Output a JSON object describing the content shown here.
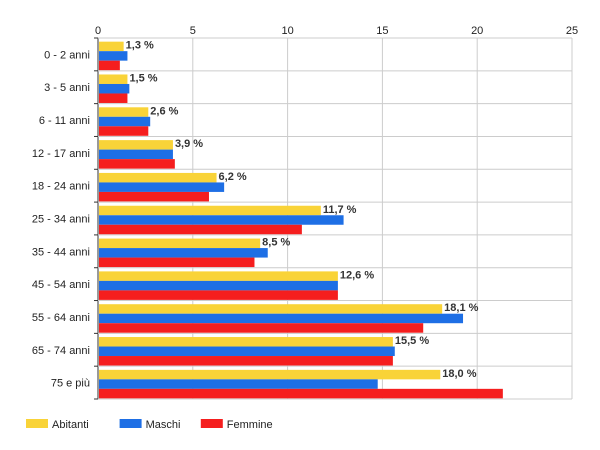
{
  "chart_data": {
    "type": "bar",
    "orientation": "horizontal",
    "categories": [
      "0 - 2 anni",
      "3 - 5 anni",
      "6 - 11 anni",
      "12 - 17 anni",
      "18 - 24 anni",
      "25 - 34 anni",
      "35 - 44 anni",
      "45 - 54 anni",
      "55 - 64 anni",
      "65 - 74 anni",
      "75 e più"
    ],
    "series": [
      {
        "name": "Abitanti",
        "color": "#f9d338",
        "values": [
          1.3,
          1.5,
          2.6,
          3.9,
          6.2,
          11.7,
          8.5,
          12.6,
          18.1,
          15.5,
          18.0
        ]
      },
      {
        "name": "Maschi",
        "color": "#1e6fe5",
        "values": [
          1.5,
          1.6,
          2.7,
          3.9,
          6.6,
          12.9,
          8.9,
          12.6,
          19.2,
          15.6,
          14.7
        ]
      },
      {
        "name": "Femmine",
        "color": "#f51e1e",
        "values": [
          1.1,
          1.5,
          2.6,
          4.0,
          5.8,
          10.7,
          8.2,
          12.6,
          17.1,
          15.5,
          21.3
        ]
      }
    ],
    "data_labels": [
      "1,3 %",
      "1,5 %",
      "2,6 %",
      "3,9 %",
      "6,2 %",
      "11,7 %",
      "8,5 %",
      "12,6 %",
      "18,1 %",
      "15,5 %",
      "18,0 %"
    ],
    "xlim": [
      0,
      25
    ],
    "x_ticks": [
      0,
      5,
      10,
      15,
      20,
      25
    ],
    "x_axis_position": "top",
    "grid": true,
    "legend_position": "bottom-left",
    "title": "",
    "xlabel": "",
    "ylabel": ""
  }
}
